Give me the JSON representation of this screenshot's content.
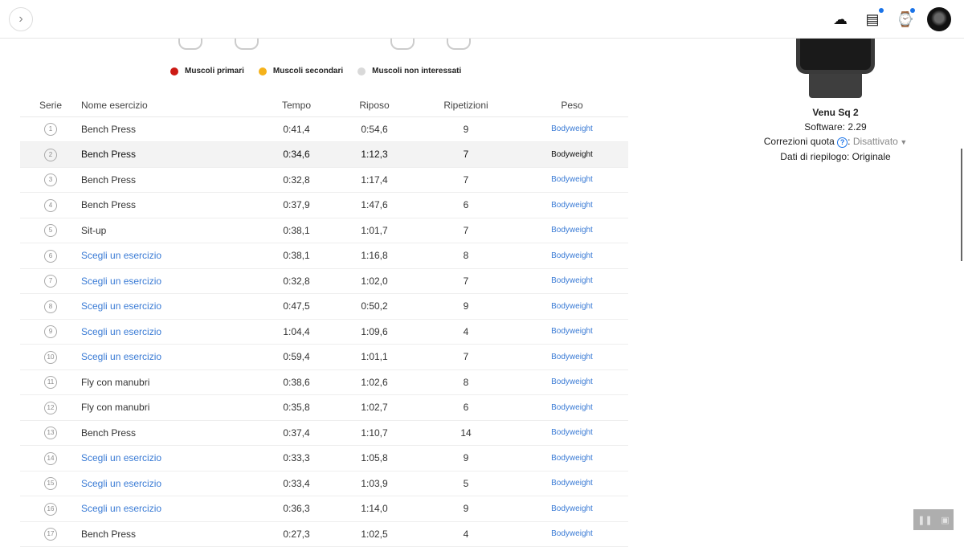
{
  "topbar": {
    "expand_icon": "chevron-right",
    "icons": [
      "cloud-upload-icon",
      "inbox-icon",
      "watch-icon",
      "avatar"
    ]
  },
  "legend": [
    {
      "label": "Muscoli primari",
      "color": "#cc1a14"
    },
    {
      "label": "Muscoli secondari",
      "color": "#f5b21b"
    },
    {
      "label": "Muscoli non interessati",
      "color": "#d9d9d9"
    }
  ],
  "table": {
    "headers": [
      "Serie",
      "Nome esercizio",
      "Tempo",
      "Riposo",
      "Ripetizioni",
      "Peso"
    ],
    "rows": [
      {
        "n": "1",
        "name": "Bench Press",
        "tempo": "0:41,4",
        "riposo": "0:54,6",
        "rip": "9",
        "peso": "Bodyweight"
      },
      {
        "n": "2",
        "name": "Bench Press",
        "tempo": "0:34,6",
        "riposo": "1:12,3",
        "rip": "7",
        "peso": "Bodyweight"
      },
      {
        "n": "3",
        "name": "Bench Press",
        "tempo": "0:32,8",
        "riposo": "1:17,4",
        "rip": "7",
        "peso": "Bodyweight"
      },
      {
        "n": "4",
        "name": "Bench Press",
        "tempo": "0:37,9",
        "riposo": "1:47,6",
        "rip": "6",
        "peso": "Bodyweight"
      },
      {
        "n": "5",
        "name": "Sit-up",
        "tempo": "0:38,1",
        "riposo": "1:01,7",
        "rip": "7",
        "peso": "Bodyweight"
      },
      {
        "n": "6",
        "name": "Scegli un esercizio",
        "tempo": "0:38,1",
        "riposo": "1:16,8",
        "rip": "8",
        "peso": "Bodyweight"
      },
      {
        "n": "7",
        "name": "Scegli un esercizio",
        "tempo": "0:32,8",
        "riposo": "1:02,0",
        "rip": "7",
        "peso": "Bodyweight"
      },
      {
        "n": "8",
        "name": "Scegli un esercizio",
        "tempo": "0:47,5",
        "riposo": "0:50,2",
        "rip": "9",
        "peso": "Bodyweight"
      },
      {
        "n": "9",
        "name": "Scegli un esercizio",
        "tempo": "1:04,4",
        "riposo": "1:09,6",
        "rip": "4",
        "peso": "Bodyweight"
      },
      {
        "n": "10",
        "name": "Scegli un esercizio",
        "tempo": "0:59,4",
        "riposo": "1:01,1",
        "rip": "7",
        "peso": "Bodyweight"
      },
      {
        "n": "11",
        "name": "Fly con manubri",
        "tempo": "0:38,6",
        "riposo": "1:02,6",
        "rip": "8",
        "peso": "Bodyweight"
      },
      {
        "n": "12",
        "name": "Fly con manubri",
        "tempo": "0:35,8",
        "riposo": "1:02,7",
        "rip": "6",
        "peso": "Bodyweight"
      },
      {
        "n": "13",
        "name": "Bench Press",
        "tempo": "0:37,4",
        "riposo": "1:10,7",
        "rip": "14",
        "peso": "Bodyweight"
      },
      {
        "n": "14",
        "name": "Scegli un esercizio",
        "tempo": "0:33,3",
        "riposo": "1:05,8",
        "rip": "9",
        "peso": "Bodyweight"
      },
      {
        "n": "15",
        "name": "Scegli un esercizio",
        "tempo": "0:33,4",
        "riposo": "1:03,9",
        "rip": "5",
        "peso": "Bodyweight"
      },
      {
        "n": "16",
        "name": "Scegli un esercizio",
        "tempo": "0:36,3",
        "riposo": "1:14,0",
        "rip": "9",
        "peso": "Bodyweight"
      },
      {
        "n": "17",
        "name": "Bench Press",
        "tempo": "0:27,3",
        "riposo": "1:02,5",
        "rip": "4",
        "peso": "Bodyweight"
      }
    ]
  },
  "device": {
    "name": "Venu Sq 2",
    "software": "Software: 2.29",
    "corrections_label": "Correzioni quota",
    "corrections_value": "Disattivato",
    "summary": "Dati di riepilogo: Originale"
  },
  "colors": {
    "link": "#3a7bd5",
    "accent": "#1a73e8"
  }
}
